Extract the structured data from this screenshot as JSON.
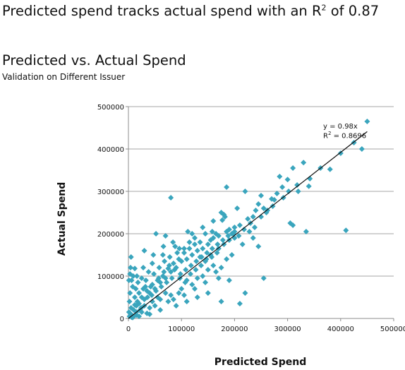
{
  "headline": {
    "text_before": "Predicted spend tracks actual spend with an R",
    "superscript": "2",
    "text_after": " of 0.87"
  },
  "chart_data": {
    "type": "scatter",
    "title": "Predicted vs. Actual Spend",
    "subtitle": "Validation on Different Issuer",
    "xlabel": "Predicted Spend",
    "ylabel": "Actual Spend",
    "xlim": [
      0,
      500000
    ],
    "ylim": [
      0,
      500000
    ],
    "xticks": [
      0,
      100000,
      200000,
      300000,
      400000,
      500000
    ],
    "yticks": [
      0,
      100000,
      200000,
      300000,
      400000,
      500000
    ],
    "xtick_labels": [
      "0",
      "100000",
      "200000",
      "300000",
      "400000",
      "500000"
    ],
    "ytick_labels": [
      "0",
      "100000",
      "200000",
      "300000",
      "400000",
      "500000"
    ],
    "grid": "horizontal",
    "marker_color": "#3aa5bd",
    "trendline": {
      "slope": 0.98,
      "intercept": 0,
      "x_range": [
        0,
        450000
      ],
      "color": "#111111"
    },
    "equation": {
      "line1": "y = 0.98x",
      "line2_before": "R",
      "line2_sup": "2",
      "line2_after": " = 0.8696"
    },
    "series": [
      {
        "points": [
          [
            450000,
            465000
          ],
          [
            440000,
            400000
          ],
          [
            410000,
            208000
          ],
          [
            380000,
            352000
          ],
          [
            335000,
            205000
          ],
          [
            330000,
            368000
          ],
          [
            340000,
            312000
          ],
          [
            320000,
            300000
          ],
          [
            310000,
            355000
          ],
          [
            300000,
            328000
          ],
          [
            305000,
            225000
          ],
          [
            310000,
            220000
          ],
          [
            290000,
            310000
          ],
          [
            285000,
            335000
          ],
          [
            280000,
            295000
          ],
          [
            275000,
            280000
          ],
          [
            270000,
            282000
          ],
          [
            260000,
            250000
          ],
          [
            255000,
            260000
          ],
          [
            250000,
            290000
          ],
          [
            245000,
            270000
          ],
          [
            240000,
            255000
          ],
          [
            235000,
            240000
          ],
          [
            225000,
            235000
          ],
          [
            220000,
            300000
          ],
          [
            230000,
            225000
          ],
          [
            210000,
            220000
          ],
          [
            200000,
            215000
          ],
          [
            195000,
            200000
          ],
          [
            190000,
            210000
          ],
          [
            185000,
            205000
          ],
          [
            180000,
            245000
          ],
          [
            175000,
            250000
          ],
          [
            182000,
            240000
          ],
          [
            177000,
            232000
          ],
          [
            170000,
            195000
          ],
          [
            165000,
            200000
          ],
          [
            160000,
            190000
          ],
          [
            158000,
            205000
          ],
          [
            155000,
            185000
          ],
          [
            150000,
            175000
          ],
          [
            145000,
            200000
          ],
          [
            140000,
            165000
          ],
          [
            135000,
            180000
          ],
          [
            130000,
            160000
          ],
          [
            125000,
            175000
          ],
          [
            120000,
            150000
          ],
          [
            115000,
            165000
          ],
          [
            110000,
            140000
          ],
          [
            105000,
            155000
          ],
          [
            100000,
            135000
          ],
          [
            95000,
            140000
          ],
          [
            90000,
            120000
          ],
          [
            85000,
            130000
          ],
          [
            80000,
            110000
          ],
          [
            75000,
            118000
          ],
          [
            70000,
            95000
          ],
          [
            65000,
            100000
          ],
          [
            60000,
            85000
          ],
          [
            55000,
            90000
          ],
          [
            50000,
            70000
          ],
          [
            45000,
            80000
          ],
          [
            40000,
            60000
          ],
          [
            35000,
            65000
          ],
          [
            30000,
            45000
          ],
          [
            25000,
            50000
          ],
          [
            20000,
            35000
          ],
          [
            15000,
            30000
          ],
          [
            10000,
            20000
          ],
          [
            5000,
            10000
          ],
          [
            2000,
            5000
          ],
          [
            80000,
            285000
          ],
          [
            52000,
            200000
          ],
          [
            70000,
            195000
          ],
          [
            185000,
            310000
          ],
          [
            205000,
            260000
          ],
          [
            255000,
            95000
          ],
          [
            220000,
            60000
          ],
          [
            210000,
            35000
          ],
          [
            190000,
            90000
          ],
          [
            175000,
            40000
          ],
          [
            150000,
            60000
          ],
          [
            130000,
            50000
          ],
          [
            110000,
            40000
          ],
          [
            90000,
            30000
          ],
          [
            60000,
            20000
          ],
          [
            40000,
            10000
          ],
          [
            20000,
            5000
          ],
          [
            5000,
            145000
          ],
          [
            3000,
            105000
          ],
          [
            12000,
            118000
          ],
          [
            30000,
            160000
          ],
          [
            45000,
            130000
          ],
          [
            65000,
            150000
          ],
          [
            88000,
            170000
          ],
          [
            120000,
            200000
          ],
          [
            140000,
            215000
          ],
          [
            160000,
            230000
          ],
          [
            200000,
            190000
          ],
          [
            215000,
            175000
          ],
          [
            235000,
            190000
          ],
          [
            245000,
            170000
          ],
          [
            195000,
            150000
          ],
          [
            175000,
            120000
          ],
          [
            165000,
            110000
          ],
          [
            150000,
            115000
          ],
          [
            140000,
            100000
          ],
          [
            130000,
            95000
          ],
          [
            120000,
            80000
          ],
          [
            110000,
            90000
          ],
          [
            100000,
            70000
          ],
          [
            95000,
            60000
          ],
          [
            80000,
            55000
          ],
          [
            75000,
            40000
          ],
          [
            60000,
            45000
          ],
          [
            50000,
            30000
          ],
          [
            40000,
            25000
          ],
          [
            35000,
            12000
          ],
          [
            25000,
            15000
          ],
          [
            15000,
            8000
          ],
          [
            8000,
            2000
          ],
          [
            3000,
            60000
          ],
          [
            8000,
            75000
          ],
          [
            12000,
            50000
          ],
          [
            18000,
            85000
          ],
          [
            25000,
            95000
          ],
          [
            32000,
            75000
          ],
          [
            38000,
            110000
          ],
          [
            48000,
            105000
          ],
          [
            58000,
            120000
          ],
          [
            68000,
            135000
          ],
          [
            78000,
            145000
          ],
          [
            92000,
            155000
          ],
          [
            105000,
            165000
          ],
          [
            115000,
            180000
          ],
          [
            125000,
            190000
          ],
          [
            135000,
            145000
          ],
          [
            145000,
            135000
          ],
          [
            155000,
            150000
          ],
          [
            170000,
            165000
          ],
          [
            180000,
            175000
          ],
          [
            190000,
            185000
          ],
          [
            200000,
            205000
          ],
          [
            185000,
            140000
          ],
          [
            160000,
            125000
          ],
          [
            170000,
            95000
          ],
          [
            145000,
            85000
          ],
          [
            125000,
            70000
          ],
          [
            105000,
            55000
          ],
          [
            85000,
            45000
          ],
          [
            70000,
            60000
          ],
          [
            55000,
            50000
          ],
          [
            45000,
            40000
          ],
          [
            30000,
            30000
          ],
          [
            22000,
            20000
          ],
          [
            15000,
            15000
          ],
          [
            10000,
            5000
          ],
          [
            5000,
            25000
          ],
          [
            2000,
            40000
          ],
          [
            1000,
            15000
          ],
          [
            6000,
            3000
          ],
          [
            12000,
            32000
          ],
          [
            20000,
            60000
          ],
          [
            28000,
            70000
          ],
          [
            36000,
            50000
          ],
          [
            44000,
            55000
          ],
          [
            52000,
            65000
          ],
          [
            62000,
            75000
          ],
          [
            72000,
            85000
          ],
          [
            82000,
            95000
          ],
          [
            98000,
            105000
          ],
          [
            108000,
            115000
          ],
          [
            118000,
            125000
          ],
          [
            128000,
            135000
          ],
          [
            138000,
            145000
          ],
          [
            148000,
            155000
          ],
          [
            158000,
            165000
          ],
          [
            168000,
            175000
          ],
          [
            178000,
            185000
          ],
          [
            188000,
            195000
          ],
          [
            198000,
            200000
          ],
          [
            208000,
            195000
          ],
          [
            218000,
            210000
          ],
          [
            228000,
            205000
          ],
          [
            238000,
            215000
          ],
          [
            250000,
            240000
          ],
          [
            262000,
            255000
          ],
          [
            272000,
            265000
          ],
          [
            292000,
            285000
          ],
          [
            302000,
            300000
          ],
          [
            318000,
            315000
          ],
          [
            342000,
            330000
          ],
          [
            362000,
            355000
          ],
          [
            400000,
            390000
          ],
          [
            425000,
            415000
          ],
          [
            1000,
            90000
          ],
          [
            4000,
            120000
          ],
          [
            9000,
            100000
          ],
          [
            14000,
            70000
          ],
          [
            17000,
            40000
          ],
          [
            24000,
            25000
          ],
          [
            33000,
            90000
          ],
          [
            42000,
            75000
          ],
          [
            57000,
            95000
          ],
          [
            67000,
            110000
          ],
          [
            77000,
            125000
          ],
          [
            87000,
            115000
          ],
          [
            97000,
            95000
          ],
          [
            107000,
            85000
          ],
          [
            117000,
            105000
          ],
          [
            127000,
            115000
          ],
          [
            137000,
            125000
          ],
          [
            147000,
            140000
          ],
          [
            157000,
            145000
          ],
          [
            167000,
            155000
          ],
          [
            96000,
            165000
          ],
          [
            112000,
            205000
          ],
          [
            84000,
            180000
          ],
          [
            66000,
            170000
          ],
          [
            47000,
            150000
          ],
          [
            28000,
            120000
          ],
          [
            16000,
            100000
          ],
          [
            6000,
            90000
          ]
        ]
      }
    ]
  }
}
